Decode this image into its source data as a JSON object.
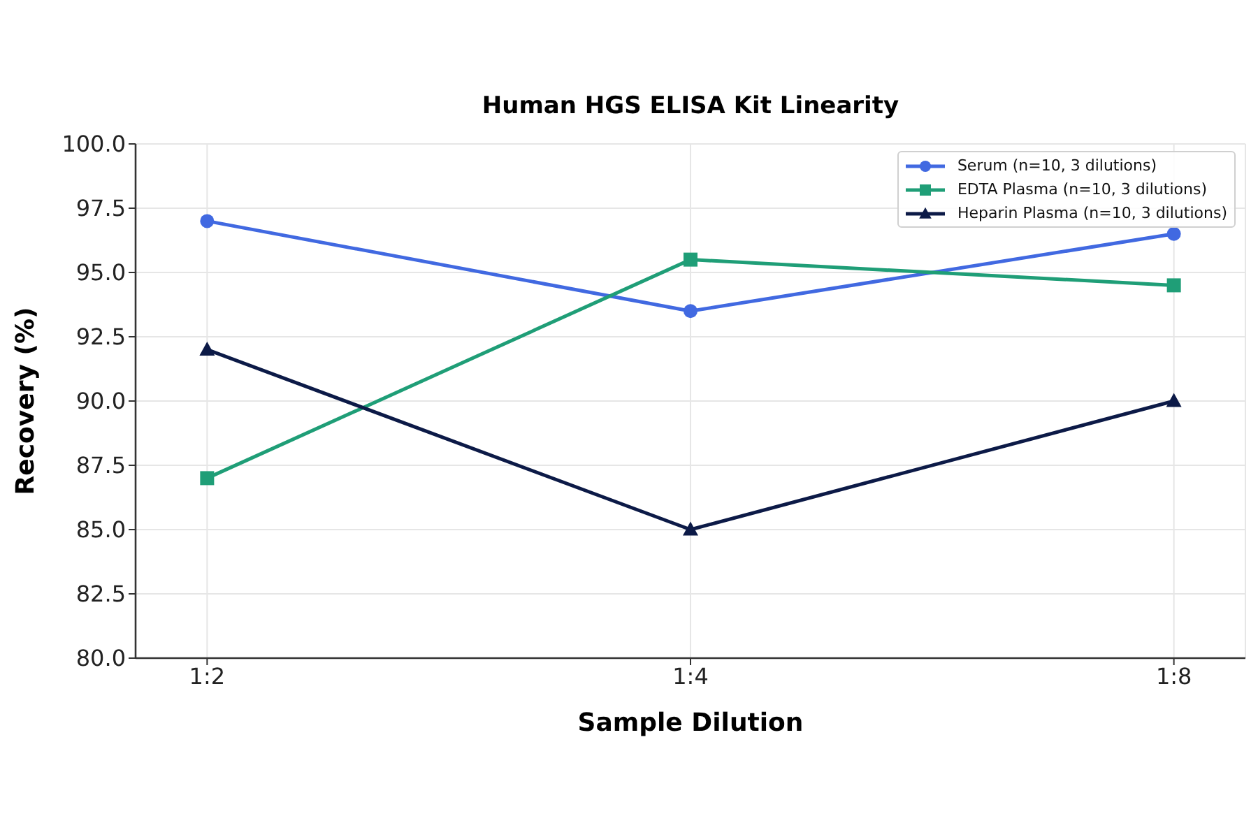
{
  "chart_data": {
    "type": "line",
    "title": "Human HGS ELISA Kit Linearity",
    "xlabel": "Sample Dilution",
    "ylabel": "Recovery (%)",
    "categories": [
      "1:2",
      "1:4",
      "1:8"
    ],
    "series": [
      {
        "name": "Serum (n=10, 3 dilutions)",
        "color": "#4169e1",
        "marker": "circle",
        "values": [
          97.0,
          93.5,
          96.5
        ]
      },
      {
        "name": "EDTA Plasma (n=10, 3 dilutions)",
        "color": "#1f9e77",
        "marker": "square",
        "values": [
          87.0,
          95.5,
          94.5
        ]
      },
      {
        "name": "Heparin Plasma (n=10, 3 dilutions)",
        "color": "#0c1a47",
        "marker": "triangle",
        "values": [
          92.0,
          85.0,
          90.0
        ]
      }
    ],
    "ylim": [
      80,
      100
    ],
    "yticks": [
      {
        "value": 80,
        "label": "80.0"
      },
      {
        "value": 82.5,
        "label": "82.5"
      },
      {
        "value": 85,
        "label": "85.0"
      },
      {
        "value": 87.5,
        "label": "87.5"
      },
      {
        "value": 90,
        "label": "90.0"
      },
      {
        "value": 92.5,
        "label": "92.5"
      },
      {
        "value": 95,
        "label": "95.0"
      },
      {
        "value": 97.5,
        "label": "97.5"
      },
      {
        "value": 100,
        "label": "100.0"
      }
    ],
    "grid": true,
    "legend": "top right",
    "line_style": "solid"
  }
}
